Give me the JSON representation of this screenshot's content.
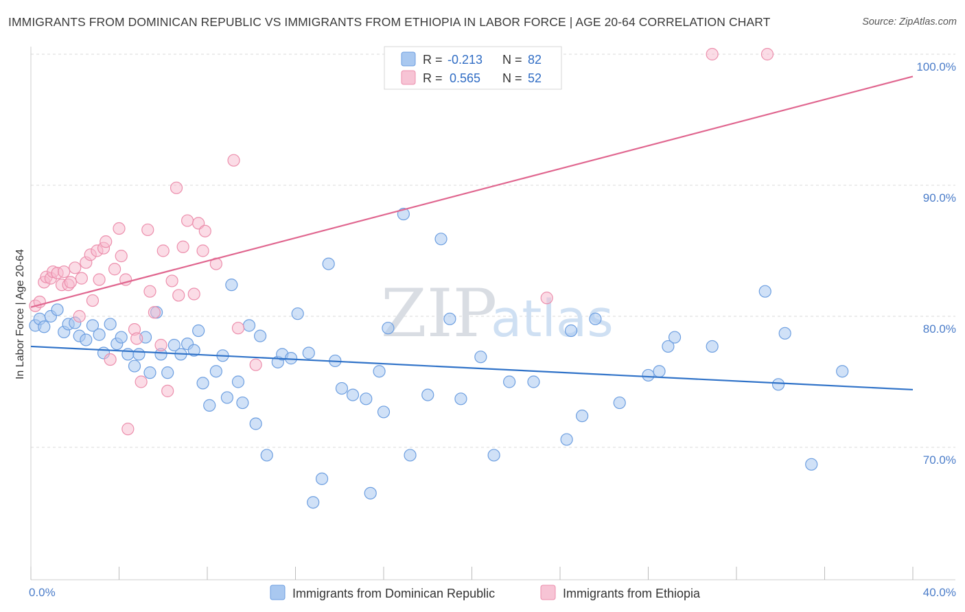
{
  "title": "IMMIGRANTS FROM DOMINICAN REPUBLIC VS IMMIGRANTS FROM ETHIOPIA IN LABOR FORCE | AGE 20-64 CORRELATION CHART",
  "source": "Source: ZipAtlas.com",
  "watermark": {
    "zip": "ZIP",
    "atlas": "atlas"
  },
  "colors": {
    "blue_fill": "#a9c8f0",
    "blue_stroke": "#6c9ee0",
    "blue_line": "#2f72c8",
    "pink_fill": "#f7b9cd",
    "pink_stroke": "#ec8eac",
    "pink_line": "#e0668f",
    "grid": "#d8d8d8",
    "tick_text": "#4a7cc9"
  },
  "legend": {
    "rows": [
      {
        "r_label": "R =",
        "r_value": "-0.213",
        "n_label": "N =",
        "n_value": "82"
      },
      {
        "r_label": "R =",
        "r_value": "0.565",
        "n_label": "N =",
        "n_value": "52"
      }
    ]
  },
  "chart_data": {
    "type": "scatter",
    "title": "IMMIGRANTS FROM DOMINICAN REPUBLIC VS IMMIGRANTS FROM ETHIOPIA IN LABOR FORCE | AGE 20-64 CORRELATION CHART",
    "xlabel": "",
    "ylabel": "In Labor Force | Age 20-64",
    "xlim": [
      0,
      40
    ],
    "ylim": [
      60,
      100
    ],
    "x_tick_labels": [
      "0.0%",
      "40.0%"
    ],
    "y_ticks": [
      70,
      80,
      90,
      100
    ],
    "y_tick_labels": [
      "70.0%",
      "80.0%",
      "90.0%",
      "100.0%"
    ],
    "grid": true,
    "legend_placement": "top-center",
    "series": [
      {
        "name": "Immigrants from Dominican Republic",
        "r": -0.213,
        "n": 82,
        "trend": {
          "x": [
            0,
            40
          ],
          "y": [
            77.7,
            74.4
          ]
        },
        "points": [
          [
            0.2,
            79.3
          ],
          [
            0.4,
            79.8
          ],
          [
            0.6,
            79.2
          ],
          [
            0.9,
            80.0
          ],
          [
            1.2,
            80.5
          ],
          [
            1.5,
            78.8
          ],
          [
            1.7,
            79.4
          ],
          [
            2.0,
            79.5
          ],
          [
            2.2,
            78.5
          ],
          [
            2.5,
            78.2
          ],
          [
            2.8,
            79.3
          ],
          [
            3.1,
            78.6
          ],
          [
            3.3,
            77.2
          ],
          [
            3.6,
            79.4
          ],
          [
            3.9,
            77.9
          ],
          [
            4.1,
            78.4
          ],
          [
            4.4,
            77.1
          ],
          [
            4.7,
            76.2
          ],
          [
            4.9,
            77.1
          ],
          [
            5.2,
            78.4
          ],
          [
            5.4,
            75.7
          ],
          [
            5.7,
            80.3
          ],
          [
            5.9,
            77.1
          ],
          [
            6.2,
            75.7
          ],
          [
            6.5,
            77.8
          ],
          [
            6.8,
            77.1
          ],
          [
            7.1,
            77.9
          ],
          [
            7.4,
            77.4
          ],
          [
            7.6,
            78.9
          ],
          [
            7.8,
            74.9
          ],
          [
            8.1,
            73.2
          ],
          [
            8.4,
            75.8
          ],
          [
            8.7,
            77.0
          ],
          [
            8.9,
            73.8
          ],
          [
            9.1,
            82.4
          ],
          [
            9.4,
            75.0
          ],
          [
            9.6,
            73.4
          ],
          [
            9.9,
            79.3
          ],
          [
            10.2,
            71.8
          ],
          [
            10.4,
            78.5
          ],
          [
            10.7,
            69.4
          ],
          [
            11.2,
            76.5
          ],
          [
            11.4,
            77.1
          ],
          [
            11.8,
            76.8
          ],
          [
            12.1,
            80.2
          ],
          [
            12.6,
            77.2
          ],
          [
            12.8,
            65.8
          ],
          [
            13.2,
            67.6
          ],
          [
            13.5,
            84.0
          ],
          [
            13.8,
            76.6
          ],
          [
            14.1,
            74.5
          ],
          [
            14.6,
            74.0
          ],
          [
            15.2,
            73.7
          ],
          [
            15.4,
            66.5
          ],
          [
            15.8,
            75.8
          ],
          [
            16.0,
            72.7
          ],
          [
            16.2,
            79.1
          ],
          [
            16.9,
            87.8
          ],
          [
            17.2,
            69.4
          ],
          [
            18.0,
            74.0
          ],
          [
            18.6,
            85.9
          ],
          [
            19.0,
            79.8
          ],
          [
            19.5,
            73.7
          ],
          [
            20.4,
            76.9
          ],
          [
            21.0,
            69.4
          ],
          [
            21.7,
            75.0
          ],
          [
            22.8,
            75.0
          ],
          [
            24.3,
            70.6
          ],
          [
            24.5,
            78.9
          ],
          [
            25.0,
            72.4
          ],
          [
            25.6,
            79.8
          ],
          [
            26.7,
            73.4
          ],
          [
            28.0,
            75.5
          ],
          [
            28.5,
            75.8
          ],
          [
            28.9,
            77.7
          ],
          [
            29.2,
            78.4
          ],
          [
            30.9,
            77.7
          ],
          [
            33.3,
            81.9
          ],
          [
            33.9,
            74.8
          ],
          [
            34.2,
            78.7
          ],
          [
            35.4,
            68.7
          ],
          [
            36.8,
            75.8
          ]
        ]
      },
      {
        "name": "Immigrants from Ethiopia",
        "r": 0.565,
        "n": 52,
        "trend": {
          "x": [
            0,
            40
          ],
          "y": [
            80.7,
            98.3
          ]
        },
        "points": [
          [
            0.2,
            80.8
          ],
          [
            0.4,
            81.1
          ],
          [
            0.6,
            82.6
          ],
          [
            0.7,
            83.0
          ],
          [
            0.9,
            82.9
          ],
          [
            1.0,
            83.4
          ],
          [
            1.2,
            83.3
          ],
          [
            1.4,
            82.4
          ],
          [
            1.5,
            83.4
          ],
          [
            1.7,
            82.4
          ],
          [
            1.8,
            82.6
          ],
          [
            2.0,
            83.7
          ],
          [
            2.2,
            80.0
          ],
          [
            2.3,
            82.9
          ],
          [
            2.5,
            84.1
          ],
          [
            2.7,
            84.7
          ],
          [
            2.8,
            81.2
          ],
          [
            3.0,
            85.0
          ],
          [
            3.1,
            82.8
          ],
          [
            3.3,
            85.2
          ],
          [
            3.4,
            85.7
          ],
          [
            3.6,
            76.7
          ],
          [
            3.8,
            83.6
          ],
          [
            4.0,
            86.7
          ],
          [
            4.1,
            84.6
          ],
          [
            4.3,
            82.8
          ],
          [
            4.4,
            71.4
          ],
          [
            4.7,
            79.0
          ],
          [
            4.8,
            78.3
          ],
          [
            5.0,
            75.0
          ],
          [
            5.3,
            86.6
          ],
          [
            5.4,
            81.9
          ],
          [
            5.6,
            80.3
          ],
          [
            5.9,
            77.8
          ],
          [
            6.0,
            85.0
          ],
          [
            6.2,
            74.3
          ],
          [
            6.4,
            82.7
          ],
          [
            6.6,
            89.8
          ],
          [
            6.7,
            81.6
          ],
          [
            6.9,
            85.3
          ],
          [
            7.1,
            87.3
          ],
          [
            7.4,
            81.7
          ],
          [
            7.6,
            87.1
          ],
          [
            7.8,
            85.0
          ],
          [
            7.9,
            86.5
          ],
          [
            8.4,
            84.0
          ],
          [
            9.2,
            91.9
          ],
          [
            9.4,
            79.1
          ],
          [
            10.2,
            76.3
          ],
          [
            23.4,
            81.4
          ],
          [
            30.9,
            100.0
          ],
          [
            33.4,
            100.0
          ]
        ]
      }
    ]
  },
  "bottom_legend": [
    {
      "label": "Immigrants from Dominican Republic"
    },
    {
      "label": "Immigrants from Ethiopia"
    }
  ]
}
